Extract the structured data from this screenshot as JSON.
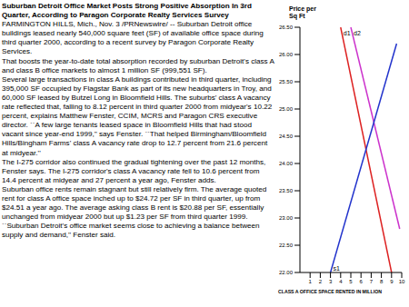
{
  "title": "Suburban Detroit Office Market Posts Strong Positive Absorption In 3rd Quarter, According to Paragon Corporate Realty Services Survey",
  "paragraphs": [
    "FARMINGTON HILLS, Mich., Nov. 3 /PRNewswire/ -- Suburban Detroit office buildings leased nearly 540,000 square feet (SF) of available office space during third quarter 2000, according to a recent survey by Paragon Corporate Realty Services.",
    "That boosts the year-to-date total absorption recorded by suburban Detroit's class A and class B office markets to almost 1 million SF (999,551 SF).",
    "Several large transactions in class A buildings contributed in third quarter, including 395,000 SF occupied by Flagstar Bank as part of its new headquarters in Troy, and 60,000 SF leased by Butzel Long in Bloomfield Hills. The suburbs' class A vacancy rate reflected that, falling to 8.12 percent in third quarter 2000 from midyear's 10.22 percent, explains Matthew Fenster, CCIM, MCRS and Paragon CRS executive director. ``A few large tenants leased space in Bloomfield Hills that had stood vacant since year-end 1999,'' says Fenster. ``That helped Birmingham/Bloomfield Hills/Bingham Farms' class A vacancy rate drop to 12.7 percent from 21.6 percent at midyear.''",
    "The I-275 corridor also continued the gradual tightening over the past 12 months, Fenster says. The I-275 corridor's class A vacancy rate fell to 10.6 percent from 14.4 percent at midyear and 27 percent a year ago, Fenster adds.",
    "Suburban office rents remain stagnant but still relatively firm. The average quoted rent for class A office space inched up to $24.72 per SF in third quarter, up from $24.51 a year ago. The average asking class B rent is $20.88 per SF, essentially unchanged from midyear 2000 but up $1.23 per SF from third quarter 1999.",
    "``Suburban Detroit's office market seems close to achieving a balance between supply and demand,'' Fenster said."
  ],
  "chart_data": {
    "type": "line",
    "y_label": "Price per Sq Ft",
    "x_label": "CLASS A OFFICE SPACE RENTED IN MILLION",
    "xlim": [
      0,
      10
    ],
    "xticks": [
      1,
      2,
      3,
      4,
      5,
      6,
      7,
      8,
      9,
      10
    ],
    "ylim": [
      22,
      26.5
    ],
    "yticks": [
      {
        "value": 22,
        "label": "22.00"
      },
      {
        "value": 22.5,
        "label": "22.50"
      },
      {
        "value": 23,
        "label": "23.00"
      },
      {
        "value": 23.5,
        "label": "23.50"
      },
      {
        "value": 24,
        "label": "24.00"
      },
      {
        "value": 24.5,
        "label": "24.50"
      },
      {
        "value": 25,
        "label": "25.00"
      },
      {
        "value": 25.5,
        "label": "25.50"
      },
      {
        "value": 26,
        "label": "26.00"
      },
      {
        "value": 26.5,
        "label": "26.50"
      }
    ],
    "series": [
      {
        "name": "d1",
        "color": "#dd2222",
        "x": [
          4,
          9
        ],
        "values": [
          26.5,
          22
        ]
      },
      {
        "name": "d2",
        "color": "#cc33cc",
        "x": [
          5,
          9.8
        ],
        "values": [
          26.5,
          22.8
        ]
      },
      {
        "name": "s1",
        "color": "#2233cc",
        "x": [
          3,
          9.5
        ],
        "values": [
          22,
          26.2
        ]
      }
    ]
  }
}
